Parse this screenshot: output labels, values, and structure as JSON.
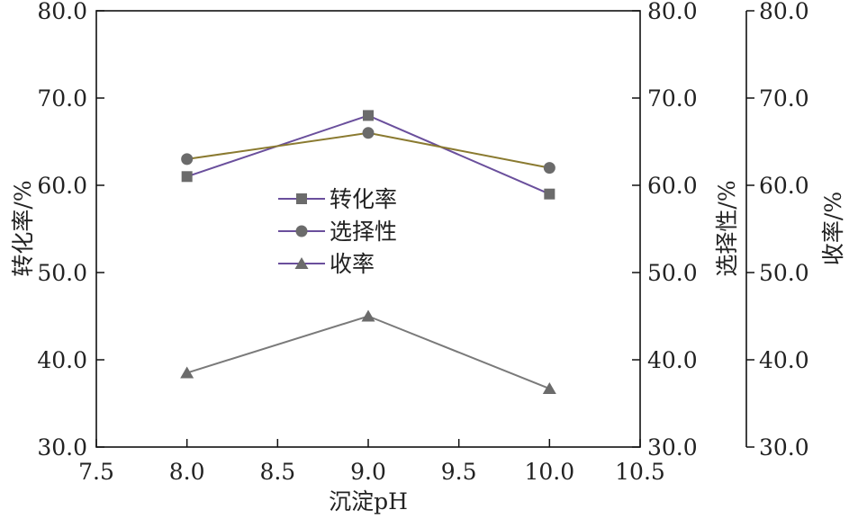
{
  "chart_data": {
    "type": "line",
    "xlabel": "沉淀pH",
    "ylabel_left": "转化率/%",
    "ylabel_right1": "选择性/%",
    "ylabel_right2": "收率/%",
    "xlim": [
      7.5,
      10.5
    ],
    "ylim": [
      30.0,
      80.0
    ],
    "x_ticks": [
      "7.5",
      "8.0",
      "8.5",
      "9.0",
      "9.5",
      "10.0",
      "10.5"
    ],
    "y_ticks": [
      "30.0",
      "40.0",
      "50.0",
      "60.0",
      "70.0",
      "80.0"
    ],
    "grid": false,
    "legend_position": "center-left",
    "x": [
      8.0,
      9.0,
      10.0
    ],
    "series": [
      {
        "name": "转化率",
        "marker": "square",
        "line_color": "#6a4f9c",
        "marker_color": "#6b6b6b",
        "values": [
          61.0,
          68.0,
          59.0
        ]
      },
      {
        "name": "选择性",
        "marker": "circle",
        "line_color": "#8a7a30",
        "marker_color": "#6b6b6b",
        "values": [
          63.0,
          66.0,
          62.0
        ]
      },
      {
        "name": "收率",
        "marker": "triangle",
        "line_color": "#7a7a7a",
        "marker_color": "#6b6b6b",
        "values": [
          38.5,
          45.0,
          36.7
        ]
      }
    ],
    "legend_line_color": "#6a4f9c"
  }
}
